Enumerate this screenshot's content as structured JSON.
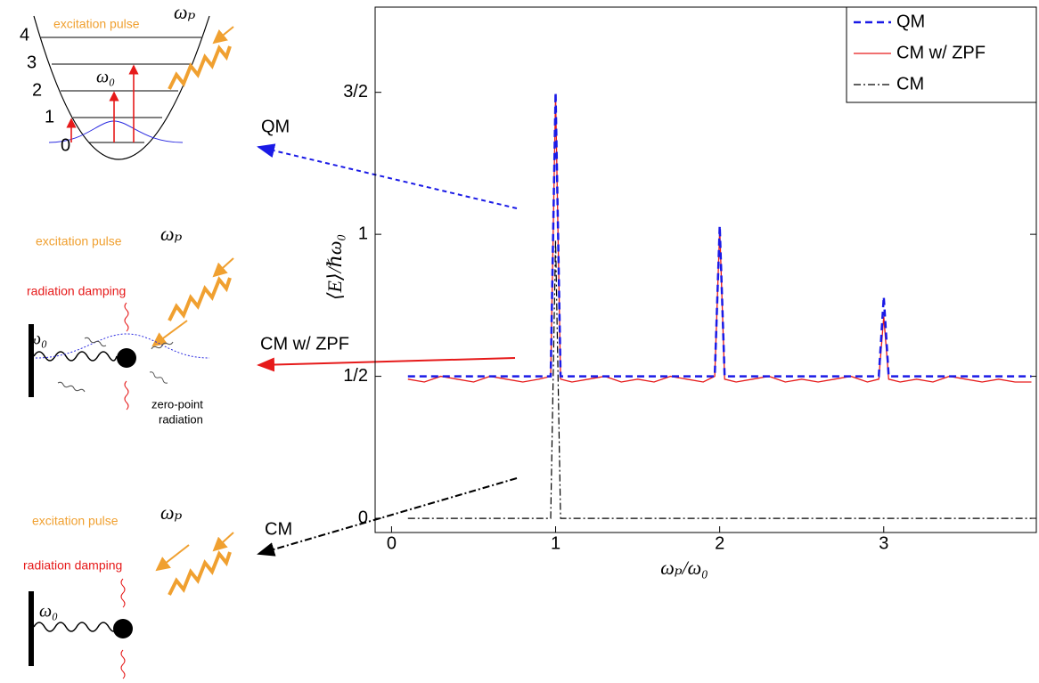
{
  "chart_data": {
    "type": "line",
    "xlabel": "ωₚ/ω₀",
    "ylabel": "⟨E⟩/ℏω₀",
    "x": [
      0.1,
      0.2,
      0.3,
      0.4,
      0.5,
      0.6,
      0.7,
      0.8,
      0.9,
      0.97,
      1.0,
      1.03,
      1.1,
      1.2,
      1.3,
      1.4,
      1.5,
      1.6,
      1.7,
      1.8,
      1.9,
      1.97,
      2.0,
      2.03,
      2.1,
      2.2,
      2.3,
      2.4,
      2.5,
      2.6,
      2.7,
      2.8,
      2.9,
      2.97,
      3.0,
      3.03,
      3.1,
      3.2,
      3.3,
      3.4,
      3.5,
      3.6,
      3.7,
      3.8,
      3.9
    ],
    "series": [
      {
        "name": "QM",
        "color": "#1a1ae6",
        "style": "dashed",
        "values": [
          0.5,
          0.5,
          0.5,
          0.5,
          0.5,
          0.5,
          0.5,
          0.5,
          0.5,
          0.5,
          1.5,
          0.5,
          0.5,
          0.5,
          0.5,
          0.5,
          0.5,
          0.5,
          0.5,
          0.5,
          0.5,
          0.5,
          1.03,
          0.5,
          0.5,
          0.5,
          0.5,
          0.5,
          0.5,
          0.5,
          0.5,
          0.5,
          0.5,
          0.5,
          0.78,
          0.5,
          0.5,
          0.5,
          0.5,
          0.5,
          0.5,
          0.5,
          0.5,
          0.5,
          0.5
        ]
      },
      {
        "name": "CM w/ ZPF",
        "color": "#e61a1a",
        "style": "solid",
        "values": [
          0.49,
          0.48,
          0.5,
          0.49,
          0.48,
          0.5,
          0.49,
          0.48,
          0.49,
          0.5,
          1.49,
          0.49,
          0.48,
          0.49,
          0.5,
          0.48,
          0.49,
          0.48,
          0.5,
          0.49,
          0.48,
          0.5,
          1.02,
          0.49,
          0.48,
          0.49,
          0.5,
          0.48,
          0.49,
          0.48,
          0.49,
          0.5,
          0.48,
          0.49,
          0.71,
          0.49,
          0.48,
          0.49,
          0.48,
          0.5,
          0.49,
          0.48,
          0.49,
          0.48,
          0.48
        ]
      },
      {
        "name": "CM",
        "color": "#000000",
        "style": "dashdot",
        "values": [
          0,
          0,
          0,
          0,
          0,
          0,
          0,
          0,
          0,
          0,
          0.98,
          0,
          0,
          0,
          0,
          0,
          0,
          0,
          0,
          0,
          0,
          0,
          0,
          0,
          0,
          0,
          0,
          0,
          0,
          0,
          0,
          0,
          0,
          0,
          0,
          0,
          0,
          0,
          0,
          0,
          0,
          0,
          0,
          0,
          0
        ]
      }
    ],
    "xlim": [
      -0.1,
      3.93
    ],
    "ylim": [
      -0.05,
      1.8
    ],
    "xticks": [
      0,
      1,
      2,
      3
    ],
    "yticks": [
      0,
      {
        "value": 0.5,
        "label": "1/2"
      },
      1,
      {
        "value": 1.5,
        "label": "3/2"
      }
    ],
    "grid": false,
    "legend": "upper right"
  },
  "diagrams": {
    "arrows": [
      "QM",
      "CM w/ ZPF",
      "CM"
    ],
    "qm": {
      "pulse": "excitation pulse",
      "freq": "ωₚ",
      "natural": "ω₀",
      "levels": [
        "0",
        "1",
        "2",
        "3",
        "4"
      ]
    },
    "zpf": {
      "pulse": "excitation pulse",
      "freq": "ωₚ",
      "damping": "radiation damping",
      "natural": "ω₀",
      "zpr": [
        "zero-point",
        "radiation"
      ]
    },
    "cm": {
      "pulse": "excitation pulse",
      "freq": "ωₚ",
      "damping": "radiation damping",
      "natural": "ω₀"
    }
  }
}
